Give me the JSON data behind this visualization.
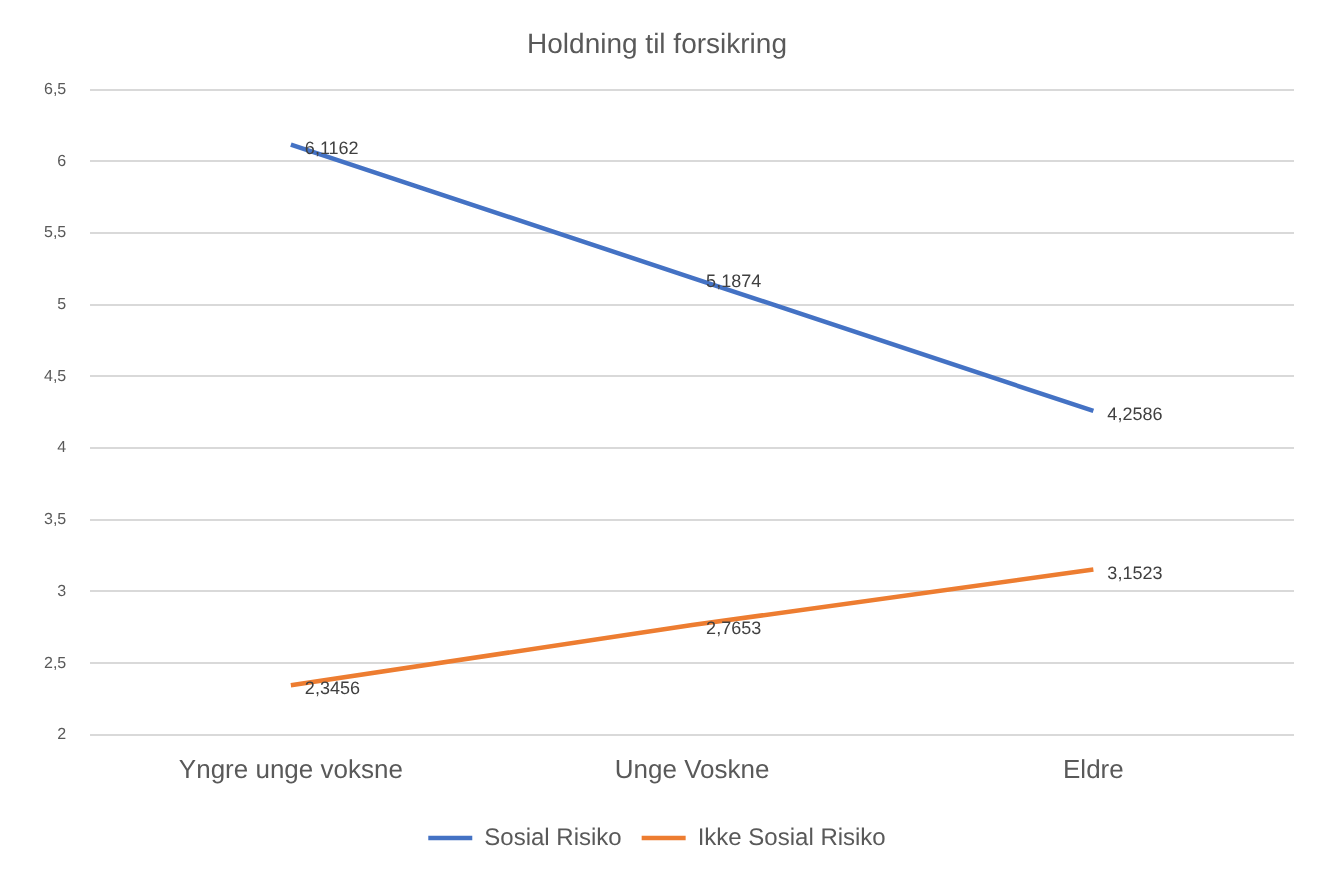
{
  "chart_data": {
    "type": "line",
    "title": "Holdning til forsikring",
    "categories": [
      "Yngre unge voksne",
      "Unge Voskne",
      "Eldre"
    ],
    "series": [
      {
        "name": "Sosial Risiko",
        "color": "#4472c4",
        "values": [
          6.1162,
          5.1874,
          4.2586
        ],
        "value_labels": [
          "6,1162",
          "5,1874",
          "4,2586"
        ]
      },
      {
        "name": "Ikke Sosial Risiko",
        "color": "#ed7d31",
        "values": [
          2.3456,
          2.7653,
          3.1523
        ],
        "value_labels": [
          "2,3456",
          "2,7653",
          "3,1523"
        ]
      }
    ],
    "ylim": [
      2,
      6.5
    ],
    "yticks": [
      2,
      {
        "value": 2.5,
        "label": "2,5"
      },
      3,
      {
        "value": 3.5,
        "label": "3,5"
      },
      4,
      {
        "value": 4.5,
        "label": "4,5"
      },
      5,
      {
        "value": 5.5,
        "label": "5,5"
      },
      6,
      {
        "value": 6.5,
        "label": "6,5"
      }
    ],
    "grid": "y",
    "legend": "bottom",
    "marker": "none",
    "line_style": "solid"
  }
}
